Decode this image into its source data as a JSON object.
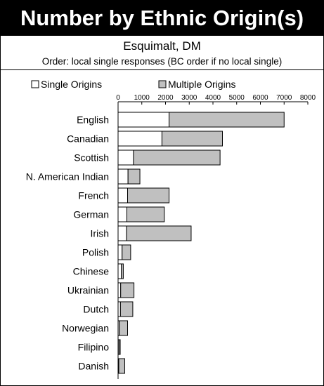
{
  "header": {
    "title": "Number by Ethnic Origin(s)",
    "subtitle": "Esquimalt, DM",
    "order_note": "Order: local single responses (BC order if no local single)"
  },
  "colors": {
    "single": "#ffffff",
    "multiple": "#c0c0c0",
    "outline": "#000000",
    "title_bg": "#000000",
    "title_text": "#ffffff"
  },
  "chart_data": {
    "type": "bar",
    "orientation": "horizontal",
    "stacked": true,
    "title": "Number by Ethnic Origin(s)",
    "subtitle": "Esquimalt, DM",
    "legend_position": "top",
    "xlim": [
      0,
      8000
    ],
    "x_ticks": [
      0,
      1000,
      2000,
      3000,
      4000,
      5000,
      6000,
      7000,
      8000
    ],
    "x_tick_labels": [
      "0",
      "1000",
      "2000",
      "3000",
      "4000",
      "5000",
      "6000",
      "7000",
      "8000"
    ],
    "grid": false,
    "categories": [
      "English",
      "Canadian",
      "Scottish",
      "N. American Indian",
      "French",
      "German",
      "Irish",
      "Polish",
      "Chinese",
      "Ukrainian",
      "Dutch",
      "Norwegian",
      "Filipino",
      "Danish"
    ],
    "series": [
      {
        "name": "Single Origins",
        "color": "#ffffff",
        "values": [
          2150,
          1850,
          650,
          420,
          400,
          370,
          360,
          170,
          140,
          110,
          100,
          50,
          40,
          30
        ]
      },
      {
        "name": "Multiple Origins",
        "color": "#c0c0c0",
        "values": [
          4850,
          2550,
          3650,
          500,
          1750,
          1580,
          2720,
          360,
          80,
          560,
          520,
          350,
          50,
          250
        ]
      }
    ]
  }
}
